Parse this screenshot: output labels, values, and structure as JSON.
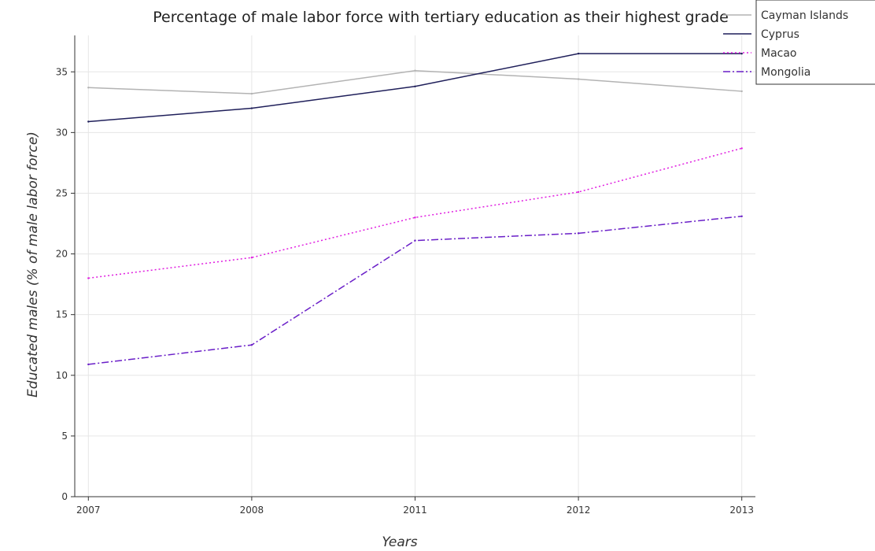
{
  "chart_data": {
    "type": "line",
    "title": "Percentage of male labor force with tertiary education as their highest grade",
    "xlabel": "Years",
    "ylabel": "Educated males (% of male labor force)",
    "categories": [
      "2007",
      "2008",
      "2011",
      "2012",
      "2013"
    ],
    "ylim": [
      0,
      38
    ],
    "yticks": [
      0,
      5,
      10,
      15,
      20,
      25,
      30,
      35
    ],
    "grid": true,
    "legend_position": "top-right",
    "series": [
      {
        "name": "Cayman Islands",
        "color": "#b3b3b3",
        "dash": "solid",
        "values": [
          33.7,
          33.2,
          35.1,
          34.4,
          33.4
        ]
      },
      {
        "name": "Cyprus",
        "color": "#1f1f5a",
        "dash": "solid",
        "values": [
          30.9,
          32.0,
          33.8,
          36.5,
          36.5
        ]
      },
      {
        "name": "Macao",
        "color": "#e01ee0",
        "dash": "dotted",
        "values": [
          18.0,
          19.7,
          23.0,
          25.1,
          28.7
        ]
      },
      {
        "name": "Mongolia",
        "color": "#6a1fc8",
        "dash": "dashdot",
        "values": [
          10.9,
          12.5,
          21.1,
          21.7,
          23.1
        ]
      }
    ]
  }
}
